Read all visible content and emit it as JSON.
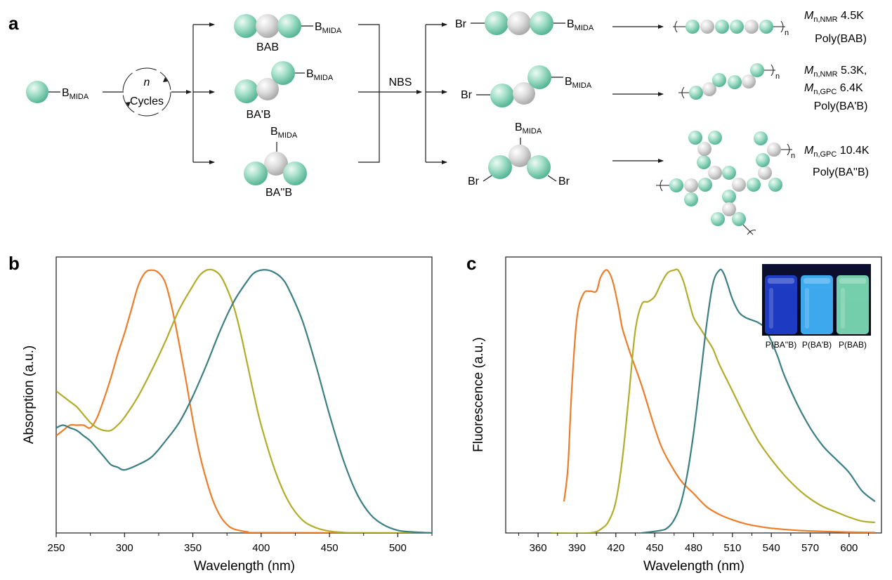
{
  "panel_labels": {
    "a": "a",
    "b": "b",
    "c": "c"
  },
  "colors": {
    "ball_green": "#9fdcc6",
    "ball_gray": "#d2d2d2",
    "orange": "#ee7d2a",
    "olive": "#b3ac2a",
    "teal": "#3b7f84"
  },
  "scheme": {
    "monomer_label": "B",
    "monomer_sub": "MIDA",
    "cycle_n": "n",
    "cycle_label": "Cycles",
    "nbs_label": "NBS",
    "bab_label": "BAB",
    "babp_label": "BA'B",
    "babpp_label": "BA''B",
    "br": "Br",
    "n_sub": "n",
    "mn_m": "M",
    "sub_nmr": "n,NMR",
    "sub_gpc": "n,GPC",
    "bab_mn_value": " 4.5K",
    "bab_poly": "Poly(BAB)",
    "babp_mn_value": " 5.3K,",
    "babp_gpc_value": " 6.4K",
    "babp_poly": "Poly(BA'B)",
    "babpp_mn_value": " 10.4K",
    "babpp_poly": "Poly(BA''B)"
  },
  "chart_data": [
    {
      "type": "line",
      "xlabel": "Wavelength (nm)",
      "ylabel": "Absorption (a.u.)",
      "xlim": [
        250,
        525
      ],
      "xticks": [
        250,
        300,
        350,
        400,
        450,
        500
      ],
      "ylim": [
        0,
        1.05
      ],
      "series": [
        {
          "color": "orange",
          "x": [
            250,
            255,
            260,
            265,
            270,
            275,
            280,
            285,
            290,
            295,
            300,
            305,
            310,
            315,
            320,
            325,
            330,
            335,
            340,
            345,
            350,
            355,
            360,
            365,
            370,
            375,
            380,
            390,
            400,
            525
          ],
          "y": [
            0.37,
            0.39,
            0.41,
            0.41,
            0.41,
            0.4,
            0.44,
            0.51,
            0.59,
            0.68,
            0.76,
            0.85,
            0.94,
            0.99,
            1.0,
            0.99,
            0.95,
            0.85,
            0.72,
            0.58,
            0.43,
            0.3,
            0.2,
            0.12,
            0.065,
            0.032,
            0.015,
            0.004,
            0.001,
            0.0
          ]
        },
        {
          "color": "olive",
          "x": [
            250,
            255,
            260,
            265,
            270,
            275,
            280,
            285,
            290,
            295,
            300,
            310,
            320,
            330,
            340,
            350,
            355,
            360,
            365,
            370,
            375,
            380,
            385,
            390,
            395,
            400,
            410,
            420,
            430,
            440,
            450,
            460,
            470,
            525
          ],
          "y": [
            0.54,
            0.52,
            0.5,
            0.48,
            0.45,
            0.42,
            0.4,
            0.39,
            0.39,
            0.41,
            0.44,
            0.52,
            0.62,
            0.73,
            0.85,
            0.94,
            0.98,
            1.0,
            1.0,
            0.98,
            0.93,
            0.86,
            0.76,
            0.64,
            0.52,
            0.41,
            0.24,
            0.12,
            0.05,
            0.02,
            0.007,
            0.002,
            0.0,
            0.0
          ]
        },
        {
          "color": "teal",
          "x": [
            250,
            255,
            260,
            265,
            270,
            275,
            280,
            285,
            290,
            295,
            300,
            310,
            320,
            330,
            340,
            350,
            360,
            370,
            380,
            390,
            395,
            400,
            405,
            410,
            415,
            420,
            430,
            440,
            450,
            460,
            470,
            480,
            490,
            500,
            510,
            525
          ],
          "y": [
            0.4,
            0.41,
            0.4,
            0.39,
            0.37,
            0.35,
            0.32,
            0.29,
            0.26,
            0.25,
            0.24,
            0.26,
            0.29,
            0.35,
            0.42,
            0.52,
            0.64,
            0.77,
            0.88,
            0.96,
            0.99,
            1.0,
            1.0,
            0.99,
            0.97,
            0.93,
            0.81,
            0.64,
            0.45,
            0.28,
            0.15,
            0.07,
            0.03,
            0.01,
            0.004,
            0.0
          ]
        }
      ]
    },
    {
      "type": "line",
      "xlabel": "Wavelength (nm)",
      "ylabel": "Fluorescence (a.u.)",
      "xlim": [
        335,
        625
      ],
      "xticks": [
        360,
        390,
        420,
        450,
        480,
        510,
        540,
        570,
        600
      ],
      "ylim": [
        0,
        1.05
      ],
      "series": [
        {
          "color": "orange",
          "x": [
            380,
            383,
            386,
            390,
            395,
            400,
            405,
            408,
            412,
            415,
            418,
            422,
            425,
            430,
            435,
            440,
            445,
            450,
            455,
            460,
            470,
            480,
            490,
            500,
            510,
            520,
            530,
            540,
            560,
            580,
            600,
            620
          ],
          "y": [
            0.12,
            0.25,
            0.55,
            0.82,
            0.91,
            0.92,
            0.92,
            0.97,
            1.0,
            0.99,
            0.95,
            0.86,
            0.78,
            0.7,
            0.63,
            0.56,
            0.48,
            0.4,
            0.33,
            0.28,
            0.2,
            0.15,
            0.1,
            0.07,
            0.05,
            0.035,
            0.025,
            0.018,
            0.01,
            0.006,
            0.003,
            0.002
          ]
        },
        {
          "color": "olive",
          "x": [
            370,
            400,
            410,
            415,
            420,
            425,
            430,
            435,
            440,
            445,
            450,
            455,
            460,
            465,
            468,
            472,
            476,
            480,
            485,
            490,
            495,
            500,
            510,
            520,
            530,
            540,
            550,
            560,
            570,
            580,
            590,
            600,
            610,
            620
          ],
          "y": [
            0.0,
            0.0,
            0.02,
            0.05,
            0.12,
            0.28,
            0.52,
            0.77,
            0.87,
            0.88,
            0.9,
            0.95,
            0.99,
            1.0,
            1.0,
            0.96,
            0.89,
            0.82,
            0.78,
            0.74,
            0.7,
            0.64,
            0.54,
            0.44,
            0.35,
            0.28,
            0.22,
            0.17,
            0.13,
            0.1,
            0.08,
            0.06,
            0.045,
            0.04
          ]
        },
        {
          "color": "teal",
          "x": [
            440,
            455,
            460,
            465,
            470,
            475,
            480,
            485,
            490,
            495,
            500,
            503,
            506,
            510,
            515,
            520,
            525,
            530,
            535,
            540,
            545,
            550,
            560,
            570,
            580,
            590,
            600,
            610,
            620
          ],
          "y": [
            0.0,
            0.01,
            0.02,
            0.05,
            0.11,
            0.22,
            0.38,
            0.58,
            0.79,
            0.95,
            1.0,
            0.99,
            0.95,
            0.89,
            0.84,
            0.82,
            0.81,
            0.8,
            0.78,
            0.73,
            0.67,
            0.6,
            0.49,
            0.4,
            0.33,
            0.28,
            0.23,
            0.16,
            0.12
          ]
        }
      ],
      "inset": {
        "labels": [
          "P(BA''B)",
          "P(BA'B)",
          "P(BAB)"
        ],
        "vial_colors": [
          "#1f3fd0",
          "#42b6ff",
          "#7fe0b7"
        ]
      }
    }
  ]
}
